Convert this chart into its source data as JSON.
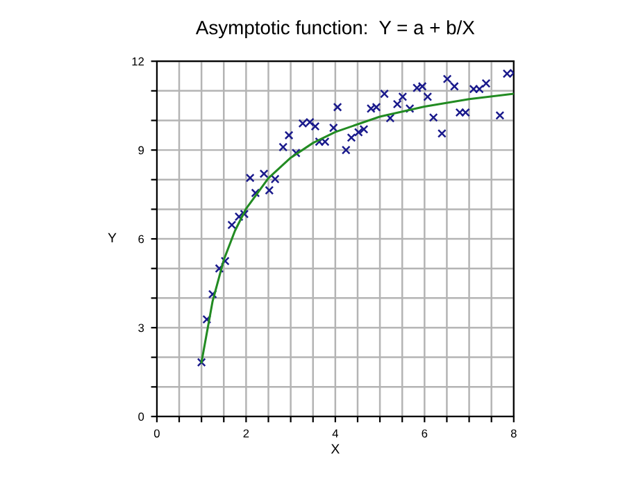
{
  "chart_data": {
    "type": "scatter",
    "title": "Asymptotic function:  Y = a + b/X",
    "xlabel": "X",
    "ylabel": "Y",
    "xlim": [
      0,
      8
    ],
    "ylim": [
      0,
      12
    ],
    "xticks": [
      0,
      {
        "value": 0.5,
        "label": null
      },
      {
        "value": 1,
        "label": null
      },
      {
        "value": 1.5,
        "label": null
      },
      2,
      {
        "value": 2.5,
        "label": null
      },
      {
        "value": 3,
        "label": null
      },
      {
        "value": 3.5,
        "label": null
      },
      4,
      {
        "value": 4.5,
        "label": null
      },
      {
        "value": 5,
        "label": null
      },
      {
        "value": 5.5,
        "label": null
      },
      6,
      {
        "value": 6.5,
        "label": null
      },
      {
        "value": 7,
        "label": null
      },
      {
        "value": 7.5,
        "label": null
      },
      8
    ],
    "yticks": [
      0,
      {
        "value": 1,
        "label": null
      },
      {
        "value": 2,
        "label": null
      },
      3,
      {
        "value": 4,
        "label": null
      },
      {
        "value": 5,
        "label": null
      },
      6,
      {
        "value": 7,
        "label": null
      },
      {
        "value": 8,
        "label": null
      },
      9,
      {
        "value": 10,
        "label": null
      },
      {
        "value": 11,
        "label": null
      },
      12
    ],
    "grid": true,
    "legend": false,
    "series": [
      {
        "color": "#1a1a8c",
        "marker": "cross",
        "x": [
          1.0,
          1.12,
          1.25,
          1.4,
          1.53,
          1.68,
          1.84,
          1.96,
          2.09,
          2.21,
          2.4,
          2.52,
          2.65,
          2.83,
          2.96,
          3.12,
          3.27,
          3.43,
          3.55,
          3.64,
          3.77,
          3.96,
          4.05,
          4.24,
          4.36,
          4.52,
          4.64,
          4.8,
          4.92,
          5.1,
          5.23,
          5.39,
          5.51,
          5.67,
          5.83,
          5.95,
          6.07,
          6.2,
          6.39,
          6.51,
          6.67,
          6.79,
          6.92,
          7.1,
          7.23,
          7.38,
          7.69,
          7.85,
          8.0
        ],
        "values": [
          1.83,
          3.28,
          4.13,
          5.0,
          5.25,
          6.47,
          6.75,
          6.84,
          8.06,
          7.55,
          8.2,
          7.64,
          8.02,
          9.1,
          9.5,
          8.9,
          9.9,
          9.94,
          9.8,
          9.28,
          9.28,
          9.75,
          10.45,
          9.0,
          9.42,
          9.6,
          9.7,
          10.4,
          10.45,
          10.9,
          10.08,
          10.55,
          10.8,
          10.4,
          11.1,
          11.15,
          10.8,
          10.1,
          9.56,
          11.4,
          11.15,
          10.27,
          10.27,
          11.06,
          11.06,
          11.25,
          10.17,
          11.58,
          11.6
        ]
      },
      {
        "type": "line",
        "color": "#228b22",
        "marker": "none",
        "line_style": "solid",
        "x": [
          1,
          1.25,
          1.5,
          1.75,
          2,
          2.5,
          3,
          3.5,
          4,
          5,
          6,
          7,
          8
        ],
        "values": [
          1.83,
          3.9,
          5.29,
          6.27,
          7.02,
          8.05,
          8.74,
          9.24,
          9.61,
          10.13,
          10.47,
          10.72,
          10.9
        ]
      }
    ]
  }
}
